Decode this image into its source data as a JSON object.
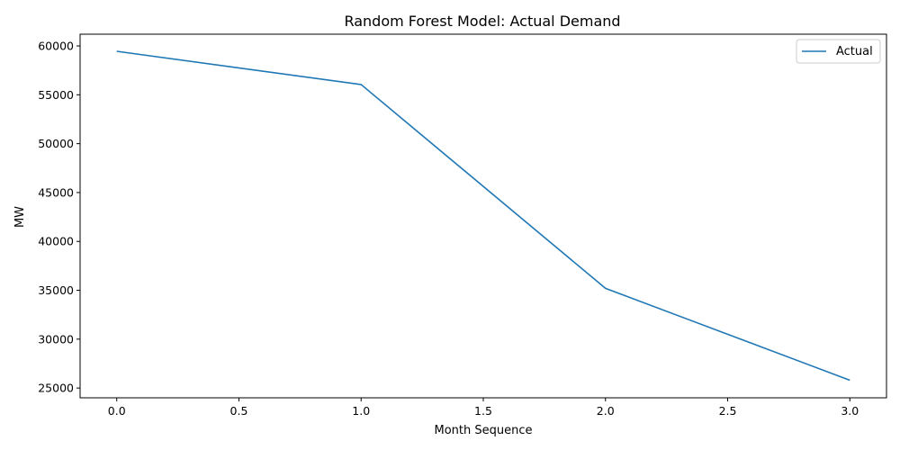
{
  "chart_data": {
    "type": "line",
    "title": "Random Forest Model: Actual Demand",
    "xlabel": "Month Sequence",
    "ylabel": "MW",
    "xlim": [
      -0.15,
      3.15
    ],
    "ylim": [
      24000,
      61200
    ],
    "x_ticks": [
      0.0,
      0.5,
      1.0,
      1.5,
      2.0,
      2.5,
      3.0
    ],
    "x_tick_labels": [
      "0.0",
      "0.5",
      "1.0",
      "1.5",
      "2.0",
      "2.5",
      "3.0"
    ],
    "y_ticks": [
      25000,
      30000,
      35000,
      40000,
      45000,
      50000,
      55000,
      60000
    ],
    "y_tick_labels": [
      "25000",
      "30000",
      "35000",
      "40000",
      "45000",
      "50000",
      "55000",
      "60000"
    ],
    "grid": false,
    "legend_position": "top-right",
    "x": [
      0,
      1,
      2,
      3
    ],
    "series": [
      {
        "name": "Actual",
        "color": "#1f77b4",
        "values": [
          59450,
          56050,
          35200,
          25800
        ]
      }
    ]
  }
}
